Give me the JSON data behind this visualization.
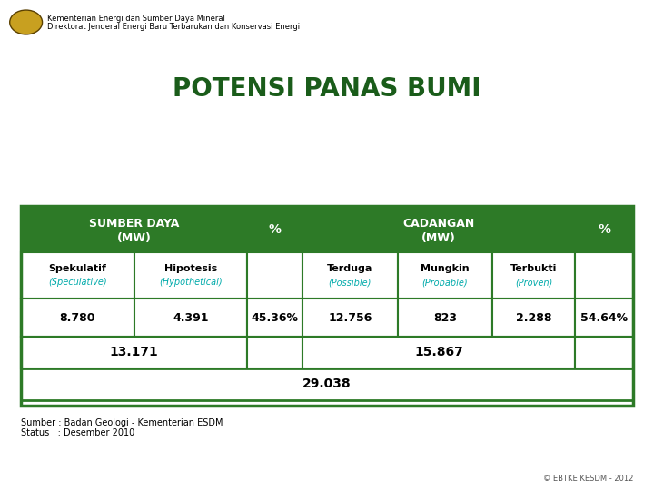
{
  "title": "POTENSI PANAS BUMI",
  "header_bg_color": "#2d7a27",
  "header_text_color": "#ffffff",
  "cell_bg_color": "#ffffff",
  "cell_text_color": "#000000",
  "border_color": "#2d7a27",
  "italic_color": "#00aaaa",
  "header1_line1": "SUMBER DAYA",
  "header1_line2": "(MW)",
  "header2": "%",
  "header3_line1": "CADANGAN",
  "header3_line2": "(MW)",
  "header4": "%",
  "col1_label": "Spekulatif",
  "col1_sublabel": "(Speculative)",
  "col2_label": "Hipotesis",
  "col2_sublabel": "(Hypothetical)",
  "col3_label": "Terduga",
  "col3_sublabel": "(Possible)",
  "col4_label": "Mungkin",
  "col4_sublabel": "(Probable)",
  "col5_label": "Terbukti",
  "col5_sublabel": "(Proven)",
  "val_spekulatif": "8.780",
  "val_hipotesis": "4.391",
  "val_pct1": "45.36%",
  "val_terduga": "12.756",
  "val_mungkin": "823",
  "val_terbukti": "2.288",
  "val_pct2": "54.64%",
  "val_sumber_daya": "13.171",
  "val_cadangan": "15.867",
  "val_total": "29.038",
  "source_line1": "Sumber : Badan Geologi - Kementerian ESDM",
  "source_line2": "Status   : Desember 2010",
  "copyright": "© EBTKE KESDM - 2012",
  "header_top_text1": "Kementerian Energi dan Sumber Daya Mineral",
  "header_top_text2": "Direktorat Jenderal Energi Baru Terbarukan dan Konservasi Energi"
}
